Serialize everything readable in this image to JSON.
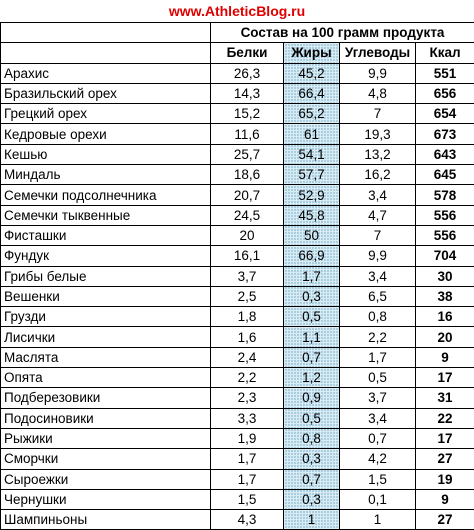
{
  "site_title": "www.AthleticBlog.ru",
  "caption": "Состав на 100 грамм продукта",
  "headers": {
    "protein": "Белки",
    "fat": "Жиры",
    "carbs": "Углеводы",
    "kcal": "Ккал"
  },
  "colors": {
    "site_title": "#e00000",
    "fat_column": "#d7ecf5"
  },
  "rows": [
    {
      "name": "Арахис",
      "protein": "26,3",
      "fat": "45,2",
      "carbs": "9,9",
      "kcal": "551"
    },
    {
      "name": "Бразильский орех",
      "protein": "14,3",
      "fat": "66,4",
      "carbs": "4,8",
      "kcal": "656"
    },
    {
      "name": "Грецкий орех",
      "protein": "15,2",
      "fat": "65,2",
      "carbs": "7",
      "kcal": "654"
    },
    {
      "name": "Кедровые орехи",
      "protein": "11,6",
      "fat": "61",
      "carbs": "19,3",
      "kcal": "673"
    },
    {
      "name": "Кешью",
      "protein": "25,7",
      "fat": "54,1",
      "carbs": "13,2",
      "kcal": "643"
    },
    {
      "name": "Миндаль",
      "protein": "18,6",
      "fat": "57,7",
      "carbs": "16,2",
      "kcal": "645"
    },
    {
      "name": "Семечки подсолнечника",
      "protein": "20,7",
      "fat": "52,9",
      "carbs": "3,4",
      "kcal": "578"
    },
    {
      "name": "Семечки тыквенные",
      "protein": "24,5",
      "fat": "45,8",
      "carbs": "4,7",
      "kcal": "556"
    },
    {
      "name": "Фисташки",
      "protein": "20",
      "fat": "50",
      "carbs": "7",
      "kcal": "556"
    },
    {
      "name": "Фундук",
      "protein": "16,1",
      "fat": "66,9",
      "carbs": "9,9",
      "kcal": "704"
    },
    {
      "name": "Грибы белые",
      "protein": "3,7",
      "fat": "1,7",
      "carbs": "3,4",
      "kcal": "30"
    },
    {
      "name": "Вешенки",
      "protein": "2,5",
      "fat": "0,3",
      "carbs": "6,5",
      "kcal": "38"
    },
    {
      "name": "Грузди",
      "protein": "1,8",
      "fat": "0,5",
      "carbs": "0,8",
      "kcal": "16"
    },
    {
      "name": "Лисички",
      "protein": "1,6",
      "fat": "1,1",
      "carbs": "2,2",
      "kcal": "20"
    },
    {
      "name": "Маслята",
      "protein": "2,4",
      "fat": "0,7",
      "carbs": "1,7",
      "kcal": "9"
    },
    {
      "name": "Опята",
      "protein": "2,2",
      "fat": "1,2",
      "carbs": "0,5",
      "kcal": "17"
    },
    {
      "name": "Подберезовики",
      "protein": "2,3",
      "fat": "0,9",
      "carbs": "3,7",
      "kcal": "31"
    },
    {
      "name": "Подосиновики",
      "protein": "3,3",
      "fat": "0,5",
      "carbs": "3,4",
      "kcal": "22"
    },
    {
      "name": "Рыжики",
      "protein": "1,9",
      "fat": "0,8",
      "carbs": "0,7",
      "kcal": "17"
    },
    {
      "name": "Сморчки",
      "protein": "1,7",
      "fat": "0,3",
      "carbs": "4,2",
      "kcal": "27"
    },
    {
      "name": "Сыроежки",
      "protein": "1,7",
      "fat": "0,7",
      "carbs": "1,5",
      "kcal": "19"
    },
    {
      "name": "Чернушки",
      "protein": "1,5",
      "fat": "0,3",
      "carbs": "0,1",
      "kcal": "9"
    },
    {
      "name": "Шампиньоны",
      "protein": "4,3",
      "fat": "1",
      "carbs": "1",
      "kcal": "27"
    }
  ]
}
